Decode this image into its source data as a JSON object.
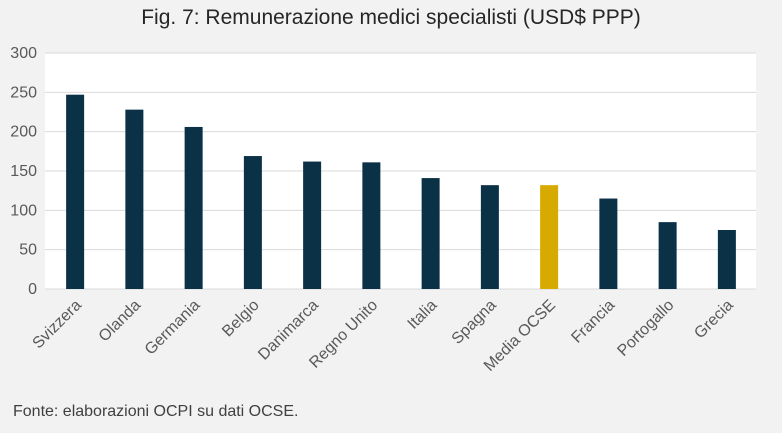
{
  "chart_data": {
    "type": "bar",
    "title": "Fig. 7: Remunerazione medici specialisti (USD$ PPP)",
    "categories": [
      "Svizzera",
      "Olanda",
      "Germania",
      "Belgio",
      "Danimarca",
      "Regno Unito",
      "Italia",
      "Spagna",
      "Media OCSE",
      "Francia",
      "Portogallo",
      "Grecia"
    ],
    "values": [
      247,
      228,
      206,
      169,
      162,
      161,
      141,
      132,
      132,
      115,
      85,
      75
    ],
    "highlight_category": "Media OCSE",
    "colors": {
      "bar": "#0b3147",
      "highlight": "#d6aa00",
      "grid": "#d9d9d9",
      "plot_bg": "#ffffff"
    },
    "ylim": [
      0,
      300
    ],
    "yticks": [
      0,
      50,
      100,
      150,
      200,
      250,
      300
    ],
    "xlabel": "",
    "ylabel": "",
    "grid": true
  },
  "source_note": "Fonte: elaborazioni OCPI su dati OCSE."
}
